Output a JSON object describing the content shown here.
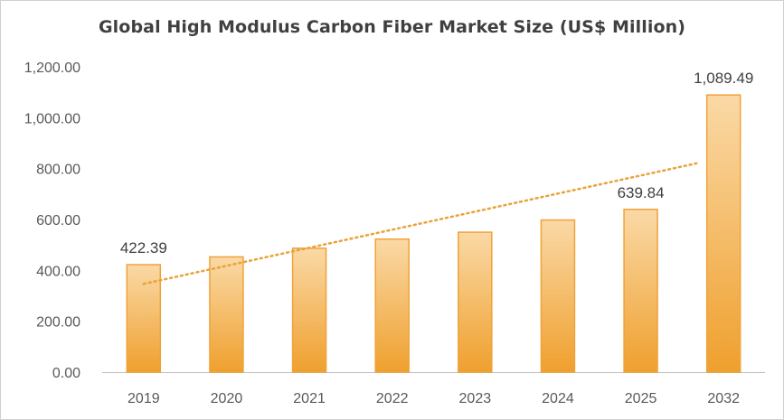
{
  "chart_data": {
    "type": "bar",
    "title": "Global High Modulus Carbon Fiber Market Size (US$ Million)",
    "xlabel": "",
    "ylabel": "",
    "categories": [
      "2019",
      "2020",
      "2021",
      "2022",
      "2023",
      "2024",
      "2025",
      "2032"
    ],
    "values": [
      422.39,
      453.0,
      487.0,
      523.0,
      550.0,
      598.0,
      639.84,
      1089.49
    ],
    "data_labels": [
      {
        "index": 0,
        "text": "422.39"
      },
      {
        "index": 6,
        "text": "639.84"
      },
      {
        "index": 7,
        "text": "1,089.49"
      }
    ],
    "ylim": [
      0,
      1200
    ],
    "yticks": [
      "0.00",
      "200.00",
      "400.00",
      "600.00",
      "800.00",
      "1,000.00",
      "1,200.00"
    ],
    "ytick_values": [
      0,
      200,
      400,
      600,
      800,
      1000,
      1200
    ],
    "trendline": {
      "type": "linear",
      "style": "dotted",
      "color": "#E8A33A"
    },
    "grid": false,
    "legend": "none",
    "colors": {
      "bar_top": "#FAD9A6",
      "bar_bottom": "#EFA02E",
      "bar_border": "#F0A23A",
      "axis": "#bfbfbf"
    }
  }
}
